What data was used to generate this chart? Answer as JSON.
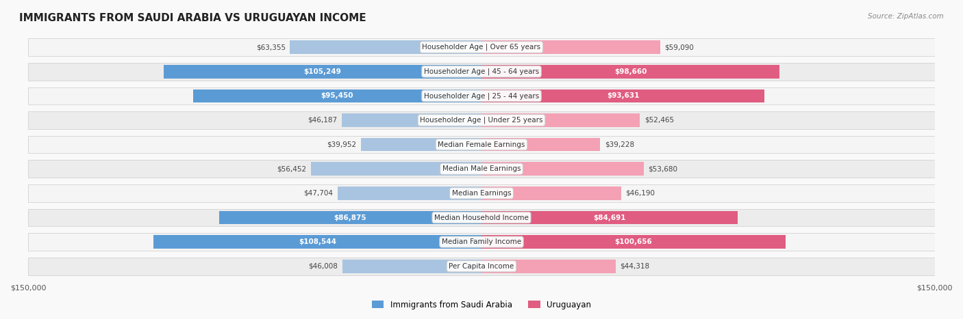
{
  "title": "IMMIGRANTS FROM SAUDI ARABIA VS URUGUAYAN INCOME",
  "source": "Source: ZipAtlas.com",
  "categories": [
    "Per Capita Income",
    "Median Family Income",
    "Median Household Income",
    "Median Earnings",
    "Median Male Earnings",
    "Median Female Earnings",
    "Householder Age | Under 25 years",
    "Householder Age | 25 - 44 years",
    "Householder Age | 45 - 64 years",
    "Householder Age | Over 65 years"
  ],
  "left_values": [
    46008,
    108544,
    86875,
    47704,
    56452,
    39952,
    46187,
    95450,
    105249,
    63355
  ],
  "right_values": [
    44318,
    100656,
    84691,
    46190,
    53680,
    39228,
    52465,
    93631,
    98660,
    59090
  ],
  "left_labels": [
    "$46,008",
    "$108,544",
    "$86,875",
    "$47,704",
    "$56,452",
    "$39,952",
    "$46,187",
    "$95,450",
    "$105,249",
    "$63,355"
  ],
  "right_labels": [
    "$44,318",
    "$100,656",
    "$84,691",
    "$46,190",
    "$53,680",
    "$39,228",
    "$52,465",
    "$93,631",
    "$98,660",
    "$59,090"
  ],
  "left_color_normal": "#a8c4e0",
  "left_color_highlight": "#6baed6",
  "right_color_normal": "#f4a0b5",
  "right_color_highlight": "#e75480",
  "highlight_threshold": 80000,
  "max_value": 150000,
  "legend_left": "Immigrants from Saudi Arabia",
  "legend_right": "Uruguayan",
  "background_color": "#f5f5f5",
  "row_bg_color": "#ffffff",
  "row_alt_bg_color": "#f0f0f0"
}
